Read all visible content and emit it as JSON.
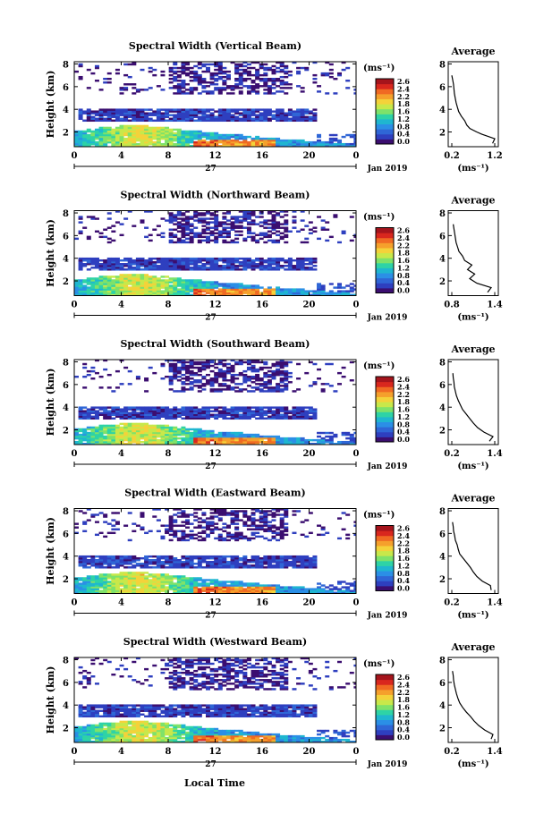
{
  "figure": {
    "x_axis_label": "Local Time",
    "date_label": "Jan 2019",
    "day_label": "27",
    "y_axis_label": "Height (km)",
    "avg_title": "Average",
    "unit_label": "(ms⁻¹)"
  },
  "colorbar": {
    "ticks": [
      "2.6",
      "2.4",
      "2.2",
      "1.8",
      "1.6",
      "1.2",
      "0.8",
      "0.4",
      "0.0"
    ],
    "colors": [
      "#3b0e70",
      "#2e3fbf",
      "#2f66d6",
      "#2b8fe6",
      "#1fb6d0",
      "#2ed3a6",
      "#7ee26a",
      "#c8e84a",
      "#f4d23a",
      "#f5a02c",
      "#f06a23",
      "#d9271e",
      "#a5141c"
    ]
  },
  "chart_data": [
    {
      "type": "heatmap",
      "title": "Spectral Width (Vertical Beam)",
      "x_ticks": [
        "0",
        "4",
        "8",
        "12",
        "16",
        "20",
        "0"
      ],
      "y_ticks": [
        "2",
        "4",
        "6",
        "8"
      ],
      "ylim": [
        0.7,
        8.2
      ],
      "avg_xlim": [
        0.2,
        1.2
      ],
      "avg_xticks": [
        "0.2",
        "1.2"
      ],
      "avg_profile": {
        "height": [
          1.0,
          1.4,
          1.8,
          2.0,
          2.3,
          2.6,
          3.0,
          3.4,
          3.8,
          4.2,
          4.6,
          5.0,
          5.4,
          5.8,
          6.2,
          6.6,
          7.0
        ],
        "value": [
          1.15,
          1.2,
          0.9,
          0.78,
          0.62,
          0.55,
          0.5,
          0.42,
          0.36,
          0.33,
          0.3,
          0.28,
          0.26,
          0.25,
          0.24,
          0.22,
          0.2
        ]
      }
    },
    {
      "type": "heatmap",
      "title": "Spectral Width (Northward Beam)",
      "x_ticks": [
        "0",
        "4",
        "8",
        "12",
        "16",
        "20",
        "0"
      ],
      "y_ticks": [
        "2",
        "4",
        "6",
        "8"
      ],
      "ylim": [
        0.7,
        8.2
      ],
      "avg_xlim": [
        0.8,
        1.4
      ],
      "avg_xticks": [
        "0.8",
        "1.4"
      ],
      "avg_profile": {
        "height": [
          1.0,
          1.4,
          1.8,
          2.2,
          2.6,
          3.0,
          3.4,
          3.8,
          4.2,
          4.6,
          5.0,
          5.4,
          5.8,
          6.2,
          6.6,
          7.0
        ],
        "value": [
          1.3,
          1.35,
          1.15,
          1.05,
          1.12,
          1.02,
          1.08,
          0.98,
          0.95,
          0.9,
          0.88,
          0.86,
          0.85,
          0.84,
          0.83,
          0.82
        ]
      }
    },
    {
      "type": "heatmap",
      "title": "Spectral Width (Southward Beam)",
      "x_ticks": [
        "0",
        "4",
        "8",
        "12",
        "16",
        "20",
        "0"
      ],
      "y_ticks": [
        "2",
        "4",
        "6",
        "8"
      ],
      "ylim": [
        0.7,
        8.2
      ],
      "avg_xlim": [
        0.2,
        1.4
      ],
      "avg_xticks": [
        "0.2",
        "1.4"
      ],
      "avg_profile": {
        "height": [
          1.0,
          1.4,
          1.8,
          2.2,
          2.6,
          3.0,
          3.4,
          3.8,
          4.2,
          4.6,
          5.0,
          5.4,
          5.8,
          6.2,
          6.6,
          7.0
        ],
        "value": [
          1.25,
          1.35,
          1.1,
          0.92,
          0.8,
          0.7,
          0.6,
          0.5,
          0.44,
          0.38,
          0.33,
          0.3,
          0.27,
          0.26,
          0.24,
          0.23
        ]
      }
    },
    {
      "type": "heatmap",
      "title": "Spectral Width (Eastward Beam)",
      "x_ticks": [
        "0",
        "4",
        "8",
        "12",
        "16",
        "20",
        "0"
      ],
      "y_ticks": [
        "2",
        "4",
        "6",
        "8"
      ],
      "ylim": [
        0.7,
        8.2
      ],
      "avg_xlim": [
        0.2,
        1.4
      ],
      "avg_xticks": [
        "0.2",
        "1.4"
      ],
      "avg_profile": {
        "height": [
          1.0,
          1.4,
          1.8,
          2.2,
          2.6,
          3.0,
          3.4,
          3.8,
          4.2,
          4.6,
          5.0,
          5.4,
          5.8,
          6.2,
          6.6,
          7.0
        ],
        "value": [
          1.3,
          1.28,
          1.05,
          0.9,
          0.8,
          0.72,
          0.62,
          0.52,
          0.42,
          0.38,
          0.35,
          0.3,
          0.28,
          0.25,
          0.24,
          0.22
        ]
      }
    },
    {
      "type": "heatmap",
      "title": "Spectral Width (Westward Beam)",
      "x_ticks": [
        "0",
        "4",
        "8",
        "12",
        "16",
        "20",
        "0"
      ],
      "y_ticks": [
        "2",
        "4",
        "6",
        "8"
      ],
      "ylim": [
        0.7,
        8.2
      ],
      "avg_xlim": [
        0.2,
        1.4
      ],
      "avg_xticks": [
        "0.2",
        "1.4"
      ],
      "avg_profile": {
        "height": [
          1.0,
          1.4,
          1.8,
          2.2,
          2.6,
          3.0,
          3.4,
          3.8,
          4.2,
          4.6,
          5.0,
          5.4,
          5.8,
          6.2,
          6.6,
          7.0
        ],
        "value": [
          1.3,
          1.35,
          1.12,
          0.95,
          0.82,
          0.72,
          0.6,
          0.5,
          0.42,
          0.37,
          0.33,
          0.3,
          0.27,
          0.25,
          0.24,
          0.22
        ]
      }
    }
  ]
}
